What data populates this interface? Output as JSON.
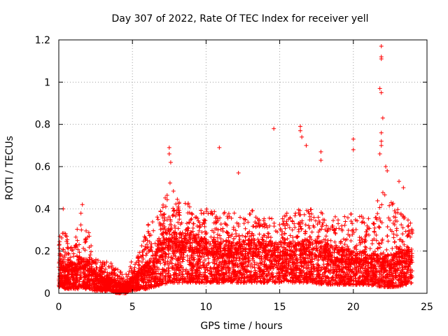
{
  "chart_data": {
    "type": "scatter",
    "title": "Day 307 of 2022, Rate Of TEC Index for receiver yell",
    "xlabel": "GPS time / hours",
    "ylabel": "ROTI / TECUs",
    "xlim": [
      0,
      25
    ],
    "ylim": [
      0,
      1.2
    ],
    "x_ticks": [
      0,
      5,
      10,
      15,
      20,
      25
    ],
    "x_tick_labels": [
      "0",
      "5",
      "10",
      "15",
      "20",
      "25"
    ],
    "y_ticks": [
      0,
      0.2,
      0.4,
      0.6,
      0.8,
      1.0,
      1.2
    ],
    "y_tick_labels": [
      "0",
      "0.2",
      "0.4",
      "0.6",
      "0.8",
      "1",
      "1.2"
    ],
    "grid": true,
    "marker": "+",
    "marker_color": "#ff0000",
    "x_data_range": [
      0,
      24
    ],
    "envelope": {
      "x": [
        0,
        0.5,
        1,
        1.5,
        2,
        2.5,
        3,
        3.5,
        4,
        4.5,
        5,
        5.5,
        6,
        6.5,
        7,
        7.5,
        8,
        9,
        10,
        11,
        12,
        13,
        14,
        15,
        16,
        17,
        18,
        19,
        20,
        21,
        22,
        23,
        24
      ],
      "low": [
        0.03,
        0.02,
        0.02,
        0.02,
        0.02,
        0.01,
        0.01,
        0.01,
        0.0,
        0.0,
        0.01,
        0.02,
        0.02,
        0.03,
        0.04,
        0.05,
        0.05,
        0.05,
        0.05,
        0.05,
        0.05,
        0.05,
        0.05,
        0.05,
        0.05,
        0.05,
        0.04,
        0.04,
        0.04,
        0.04,
        0.03,
        0.03,
        0.05
      ],
      "typ": [
        0.12,
        0.1,
        0.1,
        0.12,
        0.1,
        0.07,
        0.05,
        0.05,
        0.03,
        0.03,
        0.05,
        0.08,
        0.1,
        0.13,
        0.17,
        0.22,
        0.2,
        0.2,
        0.18,
        0.18,
        0.17,
        0.18,
        0.17,
        0.17,
        0.17,
        0.18,
        0.17,
        0.15,
        0.14,
        0.14,
        0.12,
        0.14,
        0.15
      ],
      "high": [
        0.33,
        0.28,
        0.25,
        0.38,
        0.3,
        0.18,
        0.15,
        0.15,
        0.12,
        0.1,
        0.16,
        0.2,
        0.32,
        0.36,
        0.4,
        0.55,
        0.45,
        0.42,
        0.4,
        0.4,
        0.38,
        0.4,
        0.36,
        0.35,
        0.42,
        0.4,
        0.38,
        0.36,
        0.38,
        0.36,
        0.5,
        0.4,
        0.34
      ]
    },
    "outliers": [
      {
        "x": 0.3,
        "y": 0.4
      },
      {
        "x": 1.6,
        "y": 0.42
      },
      {
        "x": 7.5,
        "y": 0.69
      },
      {
        "x": 7.5,
        "y": 0.66
      },
      {
        "x": 7.6,
        "y": 0.62
      },
      {
        "x": 10.9,
        "y": 0.69
      },
      {
        "x": 12.2,
        "y": 0.57
      },
      {
        "x": 14.6,
        "y": 0.78
      },
      {
        "x": 16.4,
        "y": 0.79
      },
      {
        "x": 16.4,
        "y": 0.77
      },
      {
        "x": 16.5,
        "y": 0.74
      },
      {
        "x": 16.8,
        "y": 0.7
      },
      {
        "x": 17.8,
        "y": 0.67
      },
      {
        "x": 17.8,
        "y": 0.63
      },
      {
        "x": 20.0,
        "y": 0.73
      },
      {
        "x": 20.0,
        "y": 0.68
      },
      {
        "x": 21.9,
        "y": 1.17
      },
      {
        "x": 21.9,
        "y": 1.12
      },
      {
        "x": 21.9,
        "y": 1.11
      },
      {
        "x": 21.8,
        "y": 0.97
      },
      {
        "x": 21.9,
        "y": 0.95
      },
      {
        "x": 22.0,
        "y": 0.83
      },
      {
        "x": 21.9,
        "y": 0.76
      },
      {
        "x": 21.9,
        "y": 0.72
      },
      {
        "x": 21.9,
        "y": 0.7
      },
      {
        "x": 21.8,
        "y": 0.66
      },
      {
        "x": 22.2,
        "y": 0.6
      },
      {
        "x": 22.3,
        "y": 0.58
      },
      {
        "x": 23.1,
        "y": 0.53
      },
      {
        "x": 23.4,
        "y": 0.5
      }
    ]
  }
}
